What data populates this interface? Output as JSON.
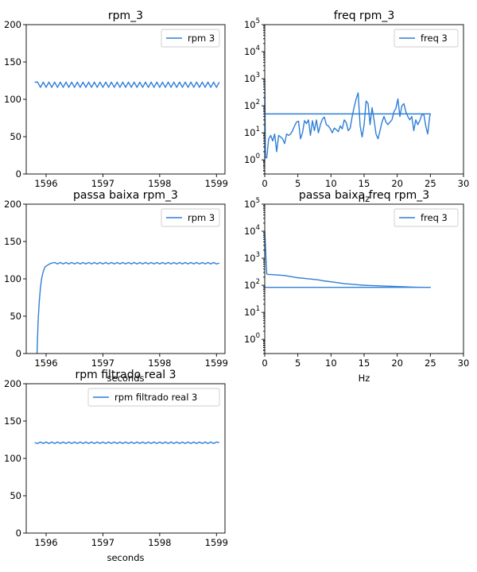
{
  "chart_data": [
    {
      "type": "line",
      "title": "rpm_3",
      "xlabel": "",
      "ylabel": "",
      "xlim": [
        1595.65,
        1599.15
      ],
      "ylim": [
        0,
        200
      ],
      "xticks": [
        1596,
        1597,
        1598,
        1599
      ],
      "yticks": [
        0,
        50,
        100,
        150,
        200
      ],
      "legend_position": "top-right",
      "series": [
        {
          "name": "rpm 3",
          "color": "#2f7fd6",
          "x": [
            1595.8,
            1595.85,
            1595.9,
            1595.95,
            1596.0,
            1596.05,
            1596.1,
            1596.15,
            1596.2,
            1596.25,
            1596.3,
            1596.35,
            1596.4,
            1596.45,
            1596.5,
            1596.55,
            1596.6,
            1596.65,
            1596.7,
            1596.75,
            1596.8,
            1596.85,
            1596.9,
            1596.95,
            1597.0,
            1597.05,
            1597.1,
            1597.15,
            1597.2,
            1597.25,
            1597.3,
            1597.35,
            1597.4,
            1597.45,
            1597.5,
            1597.55,
            1597.6,
            1597.65,
            1597.7,
            1597.75,
            1597.8,
            1597.85,
            1597.9,
            1597.95,
            1598.0,
            1598.05,
            1598.1,
            1598.15,
            1598.2,
            1598.25,
            1598.3,
            1598.35,
            1598.4,
            1598.45,
            1598.5,
            1598.55,
            1598.6,
            1598.65,
            1598.7,
            1598.75,
            1598.8,
            1598.85,
            1598.9,
            1598.95,
            1599.0,
            1599.05
          ],
          "y": [
            123,
            123,
            116,
            123,
            116,
            123,
            116,
            123,
            116,
            123,
            116,
            123,
            116,
            123,
            116,
            123,
            116,
            123,
            116,
            123,
            116,
            123,
            116,
            123,
            116,
            123,
            116,
            123,
            116,
            123,
            116,
            123,
            116,
            123,
            116,
            123,
            116,
            123,
            116,
            123,
            116,
            123,
            116,
            123,
            116,
            123,
            116,
            123,
            116,
            123,
            116,
            123,
            116,
            123,
            116,
            123,
            116,
            123,
            116,
            123,
            116,
            123,
            116,
            123,
            116,
            123
          ]
        }
      ]
    },
    {
      "type": "line",
      "title": "freq rpm_3",
      "xlabel": "Hz",
      "ylabel": "",
      "xlim": [
        0,
        30
      ],
      "ylim": [
        0.3,
        100000
      ],
      "yscale": "log",
      "xticks": [
        0,
        5,
        10,
        15,
        20,
        25,
        30
      ],
      "yticks": [
        "10^0",
        "10^1",
        "10^2",
        "10^3",
        "10^4",
        "10^5"
      ],
      "legend_position": "top-right",
      "series": [
        {
          "name": "freq 3",
          "color": "#2f7fd6",
          "x": [
            0,
            0.1,
            0.3,
            0.6,
            0.9,
            1.2,
            1.5,
            1.8,
            2.1,
            2.4,
            2.7,
            3.0,
            3.3,
            3.6,
            3.9,
            4.2,
            4.5,
            4.8,
            5.1,
            5.4,
            5.7,
            6.0,
            6.3,
            6.6,
            6.9,
            7.2,
            7.5,
            7.8,
            8.1,
            8.4,
            8.7,
            9.0,
            9.3,
            9.6,
            9.9,
            10.2,
            10.5,
            10.8,
            11.1,
            11.4,
            11.7,
            12.0,
            12.3,
            12.6,
            12.9,
            13.2,
            13.5,
            13.8,
            14.1,
            14.4,
            14.7,
            15.0,
            15.3,
            15.6,
            15.9,
            16.2,
            16.5,
            16.8,
            17.1,
            17.4,
            17.7,
            18.0,
            18.3,
            18.6,
            18.9,
            19.2,
            19.5,
            19.8,
            20.1,
            20.4,
            20.7,
            21.0,
            21.3,
            21.6,
            21.9,
            22.2,
            22.5,
            22.8,
            23.1,
            23.4,
            23.7,
            24.0,
            24.3,
            24.6,
            24.9,
            25.0,
            0,
            25.0
          ],
          "y": [
            1000,
            1.2,
            1.2,
            6,
            8,
            5,
            9,
            2,
            8,
            7,
            6,
            4,
            9,
            8,
            9,
            12,
            18,
            25,
            27,
            6,
            10,
            28,
            22,
            30,
            8,
            28,
            12,
            30,
            10,
            20,
            32,
            38,
            20,
            18,
            14,
            10,
            15,
            13,
            11,
            18,
            14,
            30,
            24,
            12,
            15,
            40,
            90,
            180,
            300,
            18,
            7,
            20,
            150,
            120,
            20,
            85,
            30,
            9,
            6,
            12,
            25,
            40,
            25,
            20,
            25,
            30,
            60,
            80,
            180,
            40,
            100,
            120,
            60,
            40,
            30,
            40,
            12,
            30,
            20,
            28,
            45,
            50,
            18,
            9,
            40,
            50,
            50,
            50
          ]
        }
      ]
    },
    {
      "type": "line",
      "title": "passa baixa rpm_3",
      "xlabel": "seconds",
      "ylabel": "",
      "xlim": [
        1595.65,
        1599.15
      ],
      "ylim": [
        0,
        200
      ],
      "xticks": [
        1596,
        1597,
        1598,
        1599
      ],
      "yticks": [
        0,
        50,
        100,
        150,
        200
      ],
      "legend_position": "top-right",
      "series": [
        {
          "name": "rpm 3",
          "color": "#2f7fd6",
          "x": [
            1595.84,
            1595.86,
            1595.88,
            1595.9,
            1595.92,
            1595.95,
            1595.98,
            1596.02,
            1596.06,
            1596.1,
            1596.15,
            1596.2,
            1596.25,
            1596.3,
            1596.35,
            1596.4,
            1596.45,
            1596.5,
            1596.55,
            1596.6,
            1596.65,
            1596.7,
            1596.75,
            1596.8,
            1596.85,
            1596.9,
            1596.95,
            1597.0,
            1597.05,
            1597.1,
            1597.15,
            1597.2,
            1597.25,
            1597.3,
            1597.35,
            1597.4,
            1597.45,
            1597.5,
            1597.55,
            1597.6,
            1597.65,
            1597.7,
            1597.75,
            1597.8,
            1597.85,
            1597.9,
            1597.95,
            1598.0,
            1598.05,
            1598.1,
            1598.15,
            1598.2,
            1598.25,
            1598.3,
            1598.35,
            1598.4,
            1598.45,
            1598.5,
            1598.55,
            1598.6,
            1598.65,
            1598.7,
            1598.75,
            1598.8,
            1598.85,
            1598.9,
            1598.95,
            1599.0,
            1599.05
          ],
          "y": [
            0,
            45,
            70,
            88,
            100,
            110,
            116,
            118,
            120,
            121,
            122,
            120,
            122,
            120,
            122,
            120,
            122,
            120,
            122,
            120,
            122,
            120,
            122,
            120,
            122,
            120,
            122,
            120,
            122,
            120,
            122,
            120,
            122,
            120,
            122,
            120,
            122,
            120,
            122,
            120,
            122,
            120,
            122,
            120,
            122,
            120,
            122,
            120,
            122,
            120,
            122,
            120,
            122,
            120,
            122,
            120,
            122,
            120,
            122,
            120,
            122,
            120,
            122,
            120,
            122,
            120,
            122,
            120,
            121
          ]
        }
      ]
    },
    {
      "type": "line",
      "title": "passa baixa freq rpm_3",
      "xlabel": "Hz",
      "ylabel": "",
      "xlim": [
        0,
        30
      ],
      "ylim": [
        0.3,
        100000
      ],
      "yscale": "log",
      "xticks": [
        0,
        5,
        10,
        15,
        20,
        25,
        30
      ],
      "yticks": [
        "10^0",
        "10^1",
        "10^2",
        "10^3",
        "10^4",
        "10^5"
      ],
      "legend_position": "top-right",
      "series": [
        {
          "name": "freq 3",
          "color": "#2f7fd6",
          "x": [
            0,
            0.3,
            0.6,
            1,
            2,
            3,
            4,
            5,
            6,
            7,
            8,
            9,
            10,
            11,
            12,
            13,
            14,
            15,
            16,
            17,
            18,
            19,
            20,
            21,
            22,
            23,
            24,
            25,
            0,
            25
          ],
          "y": [
            10000,
            260,
            250,
            250,
            240,
            230,
            210,
            190,
            180,
            170,
            160,
            145,
            135,
            125,
            115,
            110,
            105,
            100,
            98,
            96,
            94,
            92,
            90,
            88,
            86,
            85,
            84,
            84,
            84,
            84
          ]
        }
      ]
    },
    {
      "type": "line",
      "title": "rpm filtrado real 3",
      "xlabel": "seconds",
      "ylabel": "",
      "xlim": [
        1595.65,
        1599.15
      ],
      "ylim": [
        0,
        200
      ],
      "xticks": [
        1596,
        1597,
        1598,
        1599
      ],
      "yticks": [
        0,
        50,
        100,
        150,
        200
      ],
      "legend_position": "top-right",
      "series": [
        {
          "name": "rpm filtrado real 3",
          "color": "#2f7fd6",
          "x": [
            1595.8,
            1595.85,
            1595.9,
            1595.95,
            1596.0,
            1596.05,
            1596.1,
            1596.15,
            1596.2,
            1596.25,
            1596.3,
            1596.35,
            1596.4,
            1596.45,
            1596.5,
            1596.55,
            1596.6,
            1596.65,
            1596.7,
            1596.75,
            1596.8,
            1596.85,
            1596.9,
            1596.95,
            1597.0,
            1597.05,
            1597.1,
            1597.15,
            1597.2,
            1597.25,
            1597.3,
            1597.35,
            1597.4,
            1597.45,
            1597.5,
            1597.55,
            1597.6,
            1597.65,
            1597.7,
            1597.75,
            1597.8,
            1597.85,
            1597.9,
            1597.95,
            1598.0,
            1598.05,
            1598.1,
            1598.15,
            1598.2,
            1598.25,
            1598.3,
            1598.35,
            1598.4,
            1598.45,
            1598.5,
            1598.55,
            1598.6,
            1598.65,
            1598.7,
            1598.75,
            1598.8,
            1598.85,
            1598.9,
            1598.95,
            1599.0,
            1599.05
          ],
          "y": [
            121,
            120,
            122,
            120,
            122,
            120,
            122,
            120,
            122,
            120,
            122,
            120,
            122,
            120,
            122,
            120,
            122,
            120,
            122,
            120,
            122,
            120,
            122,
            120,
            122,
            120,
            122,
            120,
            122,
            120,
            122,
            120,
            122,
            120,
            122,
            120,
            122,
            120,
            122,
            120,
            122,
            120,
            122,
            120,
            122,
            120,
            122,
            120,
            122,
            120,
            122,
            120,
            122,
            120,
            122,
            120,
            122,
            120,
            122,
            120,
            122,
            120,
            122,
            120,
            122,
            121
          ]
        }
      ]
    }
  ]
}
